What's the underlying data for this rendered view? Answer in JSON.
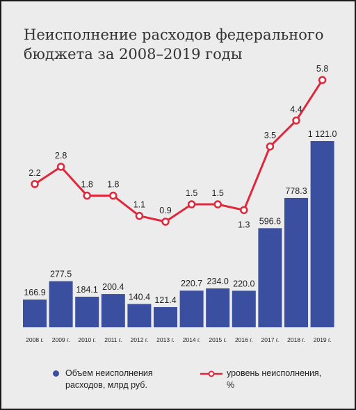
{
  "chart_data": {
    "type": "bar+line",
    "title": "Неисполнение расходов федерального бюджета за 2008–2019 годы",
    "categories": [
      "2008 г.",
      "2009 г.",
      "2010 г.",
      "2011 г.",
      "2012 г.",
      "2013 г.",
      "2014 г.",
      "2015 г.",
      "2016 г.",
      "2017 г.",
      "2018 г.",
      "2019 г."
    ],
    "series": [
      {
        "name": "Объем неисполнения расходов, млрд руб.",
        "type": "bar",
        "values": [
          166.9,
          277.5,
          184.1,
          200.4,
          140.4,
          121.4,
          220.7,
          234.0,
          220.0,
          596.6,
          778.3,
          1121.0
        ],
        "labels": [
          "166.9",
          "277.5",
          "184.1",
          "200.4",
          "140.4",
          "121.4",
          "220.7",
          "234.0",
          "220.0",
          "596.6",
          "778.3",
          "1 121.0"
        ],
        "color": "#3b4fa0"
      },
      {
        "name": "уровень неисполнения, %",
        "type": "line",
        "values": [
          2.2,
          2.8,
          1.8,
          1.8,
          1.1,
          0.9,
          1.5,
          1.5,
          1.3,
          3.5,
          4.4,
          5.8
        ],
        "labels": [
          "2.2",
          "2.8",
          "1.8",
          "1.8",
          "1.1",
          "0.9",
          "1.5",
          "1.5",
          "1.3",
          "3.5",
          "4.4",
          "5.8"
        ],
        "color": "#e0283c"
      }
    ],
    "legend": "bottom",
    "grid": false
  },
  "legend": {
    "bars_label": "Объем неисполнения расходов, млрд руб.",
    "line_label": "уровень неисполнения, %"
  }
}
